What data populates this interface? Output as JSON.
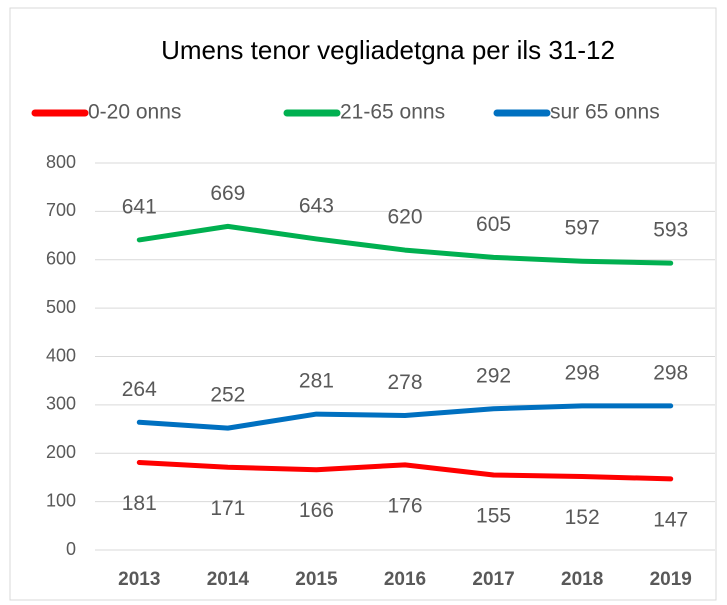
{
  "chart_data": {
    "type": "line",
    "title": "Umens tenor vegliadetgna per ils 31-12",
    "categories": [
      "2013",
      "2014",
      "2015",
      "2016",
      "2017",
      "2018",
      "2019"
    ],
    "series": [
      {
        "name": "0-20 onns",
        "color": "#ff0000",
        "values": [
          181,
          171,
          166,
          176,
          155,
          152,
          147
        ]
      },
      {
        "name": "21-65 onns",
        "color": "#00b050",
        "values": [
          641,
          669,
          643,
          620,
          605,
          597,
          593
        ]
      },
      {
        "name": "sur 65 onns",
        "color": "#0070c0",
        "values": [
          264,
          252,
          281,
          278,
          292,
          298,
          298
        ]
      }
    ],
    "ylim": [
      0,
      800
    ],
    "yticks": [
      0,
      100,
      200,
      300,
      400,
      500,
      600,
      700,
      800
    ],
    "grid": true,
    "legend": "top"
  }
}
